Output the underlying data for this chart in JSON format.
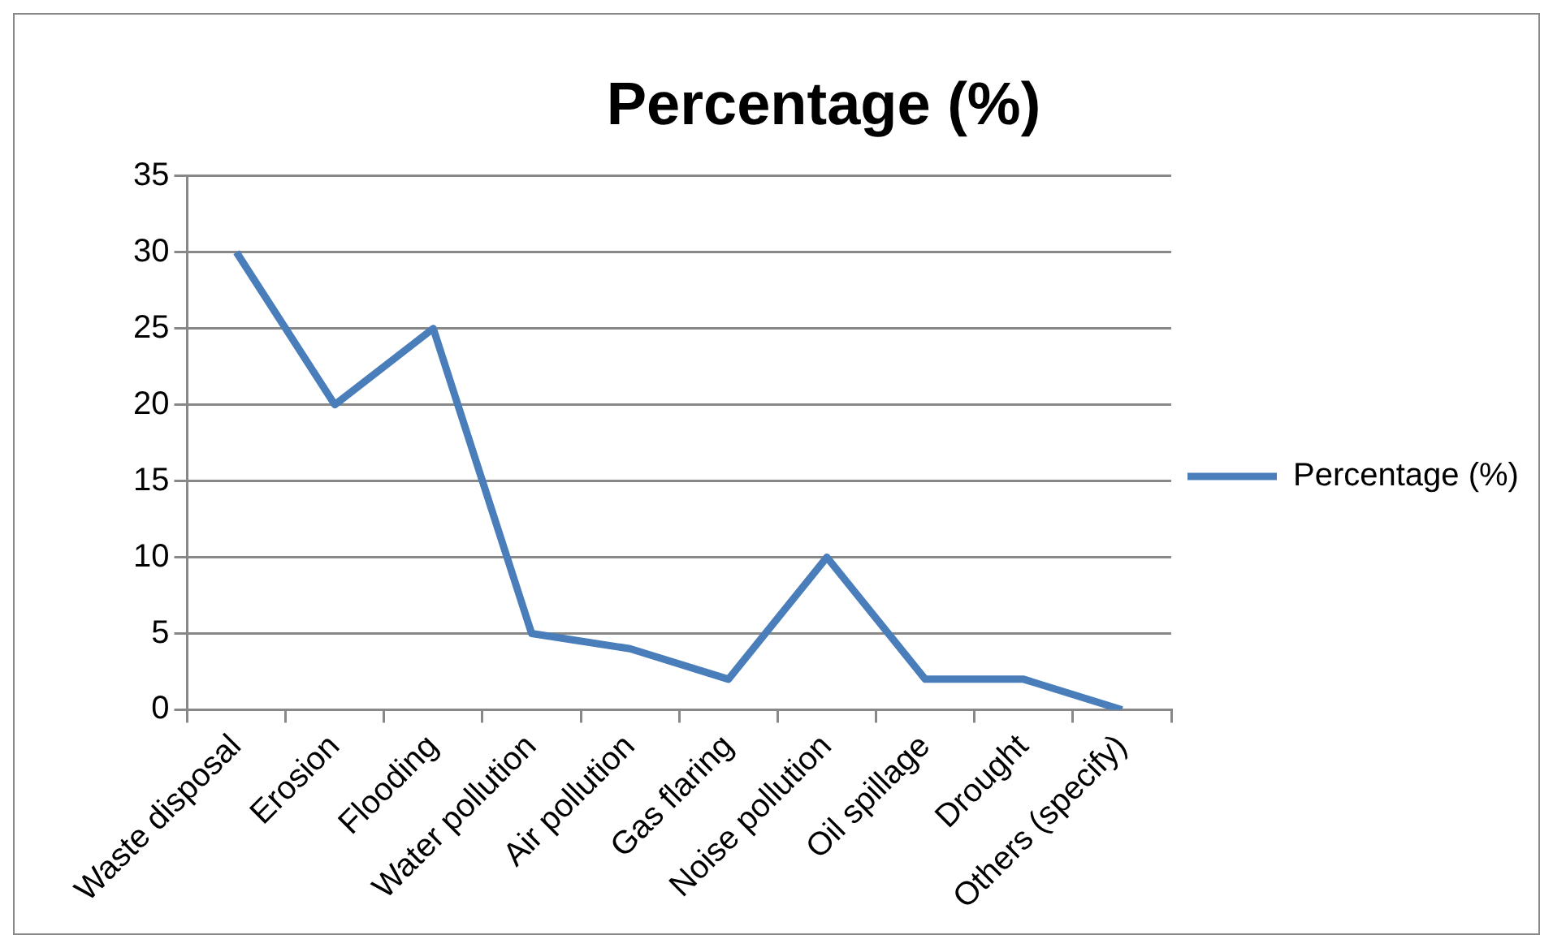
{
  "chart_data": {
    "type": "line",
    "title": "Percentage (%)",
    "categories": [
      "Waste disposal",
      "Erosion",
      "Flooding",
      "Water pollution",
      "Air pollution",
      "Gas flaring",
      "Noise pollution",
      "Oil spillage",
      "Drought",
      "Others (specify)"
    ],
    "series": [
      {
        "name": "Percentage (%)",
        "color": "#4a7ebb",
        "values": [
          30,
          20,
          25,
          5,
          4,
          2,
          10,
          2,
          2,
          0
        ]
      }
    ],
    "ylim": [
      0,
      35
    ],
    "yticks": [
      0,
      5,
      10,
      15,
      20,
      25,
      30,
      35
    ],
    "grid": "y",
    "legend": "right",
    "marker": "none"
  }
}
